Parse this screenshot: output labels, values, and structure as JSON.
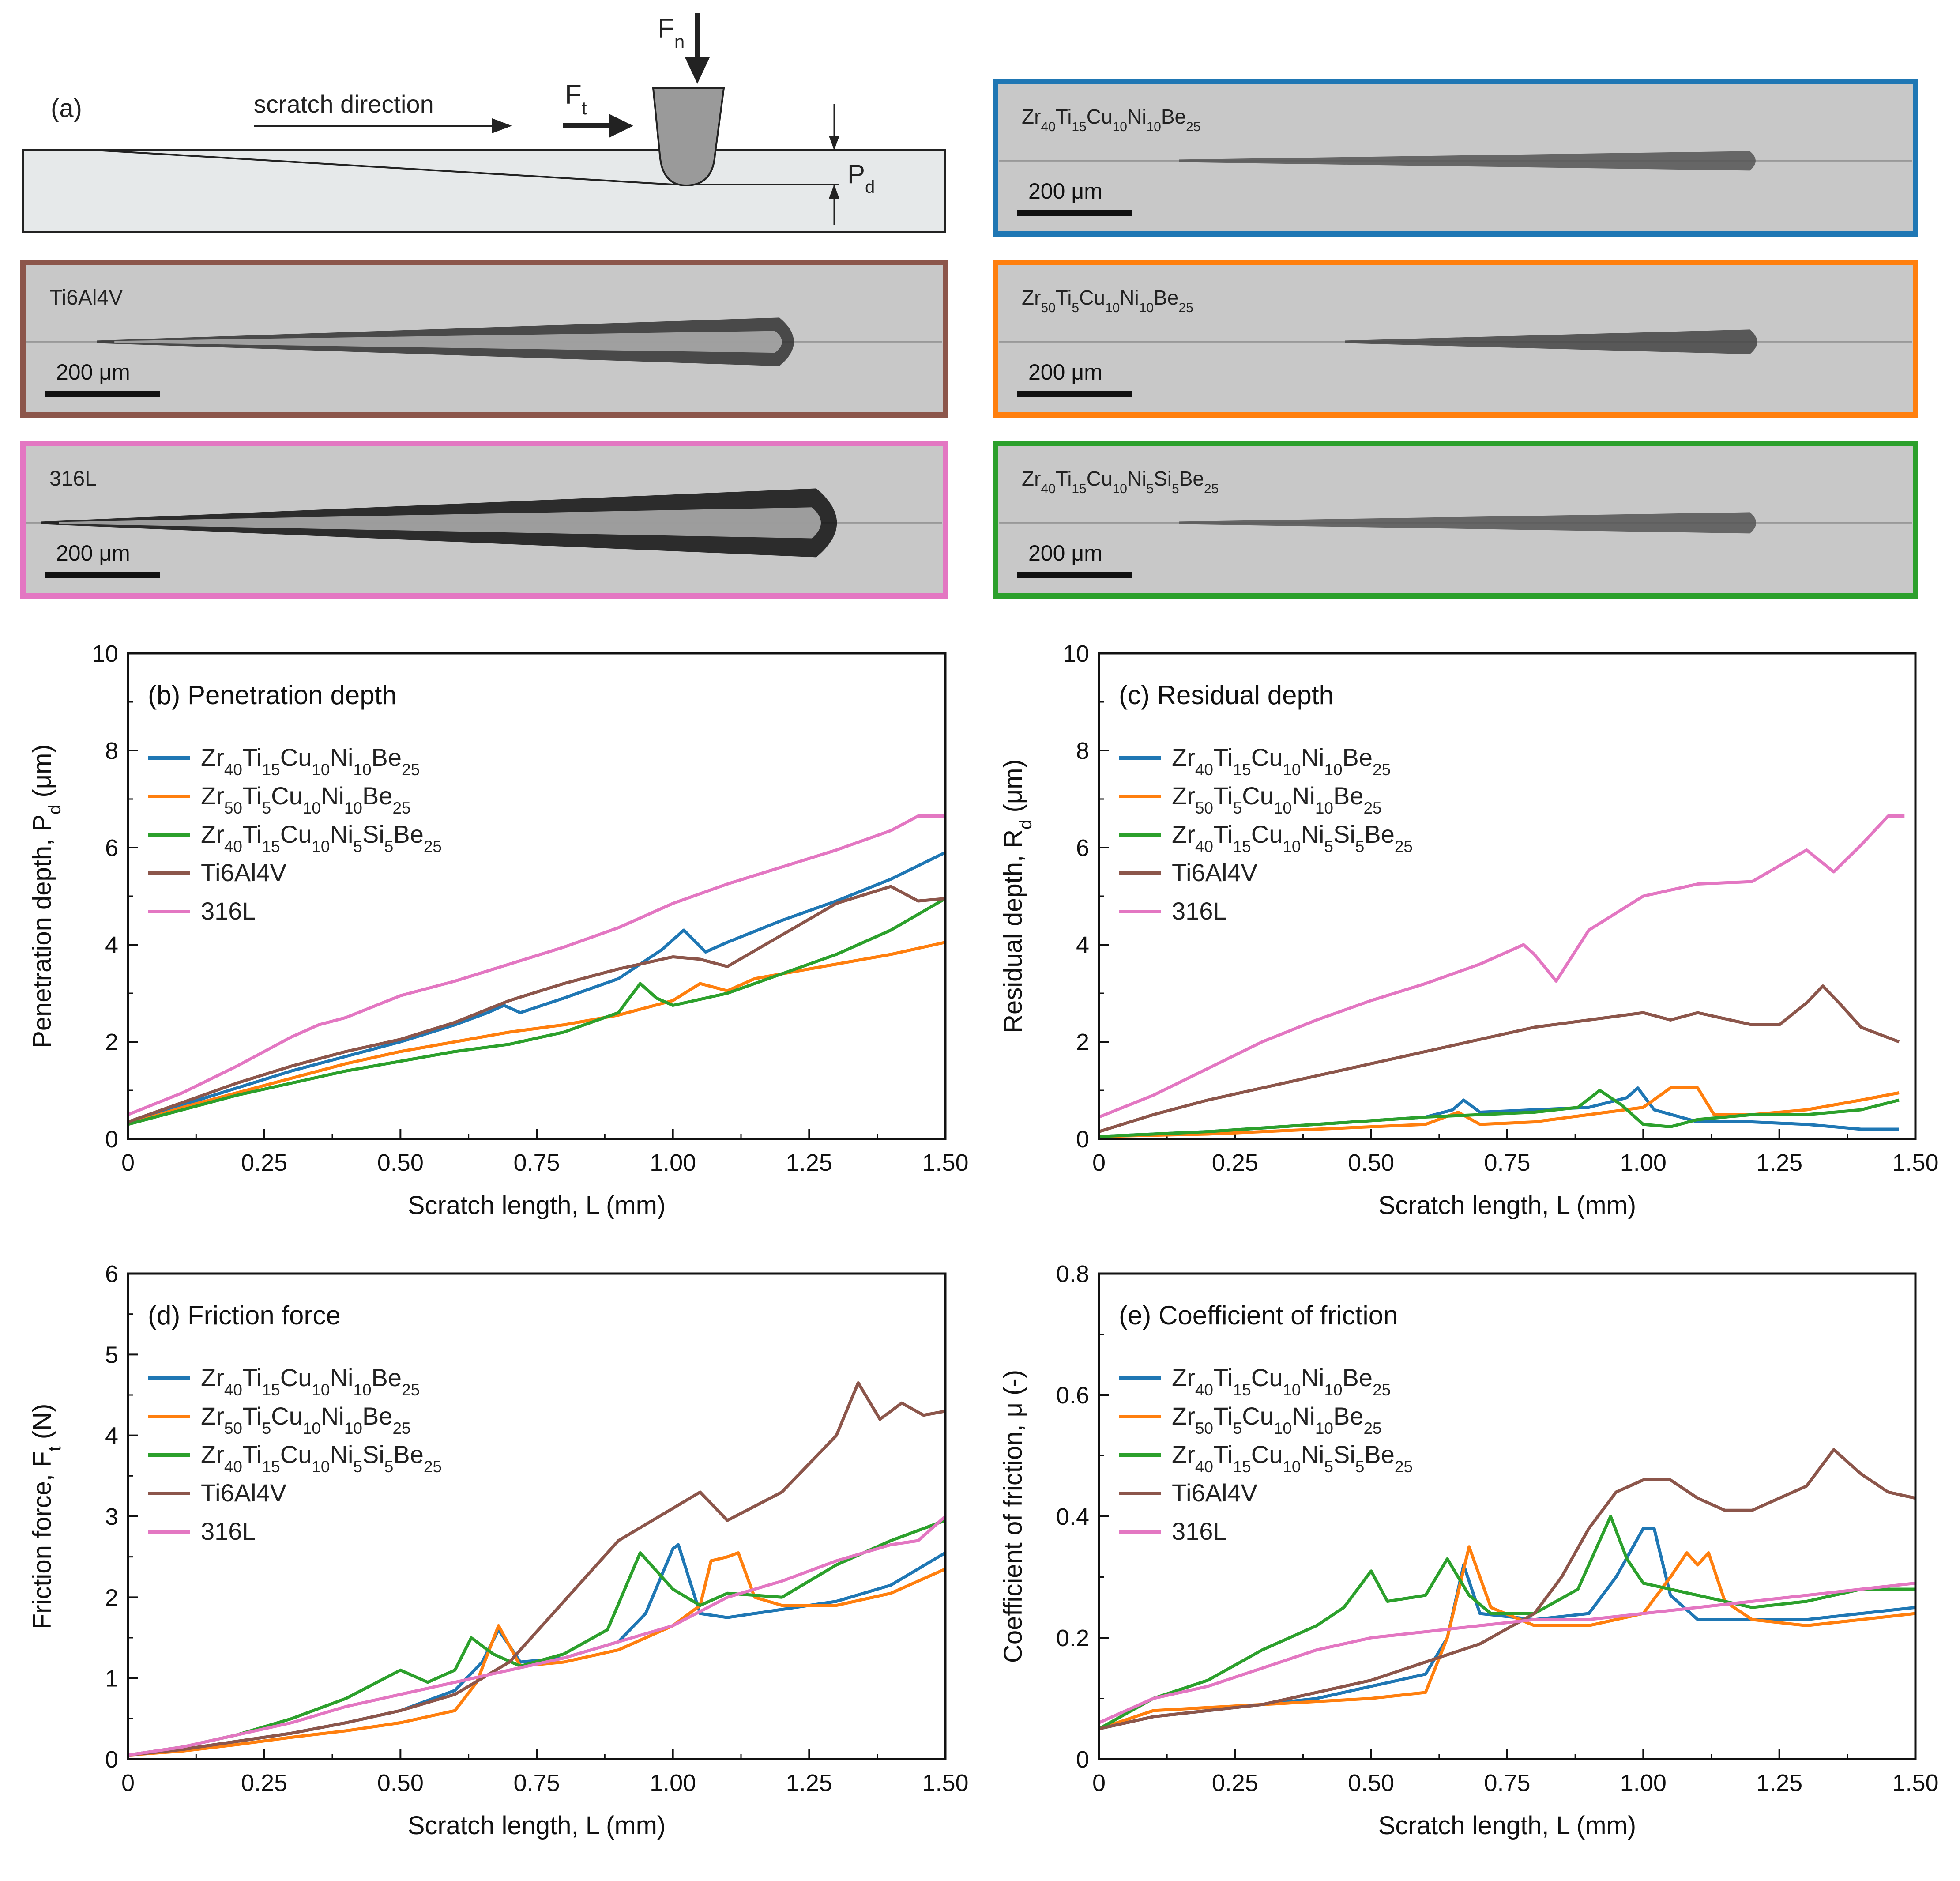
{
  "colors": {
    "alloy1": "#1f77b4",
    "alloy2": "#ff7f0e",
    "alloy3": "#2ca02c",
    "ti6al4v": "#8c564b",
    "ss316l": "#e377c2",
    "image_bg": "#c8c8c8",
    "schematic_bg": "#e6e9ea"
  },
  "schematic": {
    "panel_label": "(a)",
    "direction_label": "scratch direction",
    "fn_label": "F",
    "fn_sub": "n",
    "ft_label": "F",
    "ft_sub": "t",
    "pd_label": "P",
    "pd_sub": "d"
  },
  "micrographs": [
    {
      "id": "alloy1",
      "base": [
        "Zr",
        "40",
        "Ti",
        "15",
        "Cu",
        "10",
        "Ni",
        "10",
        "Be",
        "25"
      ],
      "scale": "200 μm",
      "frame_color": "#1f77b4"
    },
    {
      "id": "ti6al4v",
      "label": "Ti6Al4V",
      "scale": "200 μm",
      "frame_color": "#8c564b"
    },
    {
      "id": "alloy2",
      "base": [
        "Zr",
        "50",
        "Ti",
        "5",
        "Cu",
        "10",
        "Ni",
        "10",
        "Be",
        "25"
      ],
      "scale": "200 μm",
      "frame_color": "#ff7f0e"
    },
    {
      "id": "ss316l",
      "label": "316L",
      "scale": "200 μm",
      "frame_color": "#e377c2"
    },
    {
      "id": "alloy3",
      "base": [
        "Zr",
        "40",
        "Ti",
        "15",
        "Cu",
        "10",
        "Ni",
        "5",
        "Si",
        "5",
        "Be",
        "25"
      ],
      "scale": "200 μm",
      "frame_color": "#2ca02c"
    }
  ],
  "legend": [
    {
      "key": "alloy1",
      "parts": [
        "Zr",
        "40",
        "Ti",
        "15",
        "Cu",
        "10",
        "Ni",
        "10",
        "Be",
        "25"
      ]
    },
    {
      "key": "alloy2",
      "parts": [
        "Zr",
        "50",
        "Ti",
        "5",
        "Cu",
        "10",
        "Ni",
        "10",
        "Be",
        "25"
      ]
    },
    {
      "key": "alloy3",
      "parts": [
        "Zr",
        "40",
        "Ti",
        "15",
        "Cu",
        "10",
        "Ni",
        "5",
        "Si",
        "5",
        "Be",
        "25"
      ]
    },
    {
      "key": "ti6al4v",
      "parts": [
        "Ti6Al4V"
      ]
    },
    {
      "key": "ss316l",
      "parts": [
        "316L"
      ]
    }
  ],
  "chart_data": [
    {
      "type": "line",
      "title": "(b) Penetration depth",
      "xlabel": "Scratch length, L (mm)",
      "ylabel": [
        "Penetration depth, P",
        "d",
        " (μm)"
      ],
      "xlim": [
        0,
        1.5
      ],
      "ylim": [
        0,
        10
      ],
      "xticks": [
        "0",
        "0.25",
        "0.50",
        "0.75",
        "1.00",
        "1.25",
        "1.50"
      ],
      "yticks": [
        "0",
        "2",
        "4",
        "6",
        "8",
        "10"
      ],
      "series": [
        {
          "key": "alloy1",
          "x": [
            0,
            0.1,
            0.2,
            0.3,
            0.4,
            0.5,
            0.6,
            0.66,
            0.69,
            0.72,
            0.8,
            0.9,
            0.98,
            1.02,
            1.06,
            1.1,
            1.2,
            1.3,
            1.4,
            1.5
          ],
          "y": [
            0.35,
            0.7,
            1.05,
            1.4,
            1.7,
            2.0,
            2.35,
            2.6,
            2.75,
            2.6,
            2.9,
            3.3,
            3.9,
            4.3,
            3.85,
            4.05,
            4.5,
            4.9,
            5.35,
            5.9
          ]
        },
        {
          "key": "alloy2",
          "x": [
            0,
            0.1,
            0.2,
            0.3,
            0.4,
            0.5,
            0.6,
            0.7,
            0.8,
            0.9,
            1.0,
            1.05,
            1.1,
            1.15,
            1.2,
            1.3,
            1.4,
            1.5
          ],
          "y": [
            0.3,
            0.65,
            0.95,
            1.25,
            1.55,
            1.8,
            2.0,
            2.2,
            2.35,
            2.55,
            2.85,
            3.2,
            3.05,
            3.3,
            3.4,
            3.6,
            3.8,
            4.05
          ]
        },
        {
          "key": "alloy3",
          "x": [
            0,
            0.1,
            0.2,
            0.3,
            0.4,
            0.5,
            0.6,
            0.7,
            0.8,
            0.9,
            0.94,
            0.97,
            1.0,
            1.1,
            1.2,
            1.3,
            1.4,
            1.5
          ],
          "y": [
            0.3,
            0.6,
            0.9,
            1.15,
            1.4,
            1.6,
            1.8,
            1.95,
            2.2,
            2.6,
            3.2,
            2.9,
            2.75,
            3.0,
            3.4,
            3.8,
            4.3,
            4.95
          ]
        },
        {
          "key": "ti6al4v",
          "x": [
            0,
            0.1,
            0.2,
            0.3,
            0.4,
            0.5,
            0.6,
            0.7,
            0.8,
            0.9,
            1.0,
            1.05,
            1.1,
            1.2,
            1.3,
            1.4,
            1.45,
            1.5
          ],
          "y": [
            0.35,
            0.75,
            1.15,
            1.5,
            1.8,
            2.05,
            2.4,
            2.85,
            3.2,
            3.5,
            3.75,
            3.7,
            3.55,
            4.2,
            4.85,
            5.2,
            4.9,
            4.95
          ]
        },
        {
          "key": "ss316l",
          "x": [
            0,
            0.1,
            0.2,
            0.3,
            0.35,
            0.4,
            0.5,
            0.6,
            0.7,
            0.8,
            0.9,
            1.0,
            1.1,
            1.2,
            1.3,
            1.4,
            1.45,
            1.5
          ],
          "y": [
            0.5,
            0.95,
            1.5,
            2.1,
            2.35,
            2.5,
            2.95,
            3.25,
            3.6,
            3.95,
            4.35,
            4.85,
            5.25,
            5.6,
            5.95,
            6.35,
            6.65,
            6.65
          ]
        }
      ]
    },
    {
      "type": "line",
      "title": "(c) Residual depth",
      "xlabel": "Scratch length, L (mm)",
      "ylabel": [
        "Residual depth, R",
        "d",
        " (μm)"
      ],
      "xlim": [
        0,
        1.5
      ],
      "ylim": [
        0,
        10
      ],
      "xticks": [
        "0",
        "0.25",
        "0.50",
        "0.75",
        "1.00",
        "1.25",
        "1.50"
      ],
      "yticks": [
        "0",
        "2",
        "4",
        "6",
        "8",
        "10"
      ],
      "series": [
        {
          "key": "alloy1",
          "x": [
            0,
            0.2,
            0.4,
            0.6,
            0.65,
            0.67,
            0.7,
            0.8,
            0.9,
            0.97,
            0.99,
            1.02,
            1.1,
            1.2,
            1.3,
            1.4,
            1.47
          ],
          "y": [
            0.05,
            0.15,
            0.3,
            0.45,
            0.6,
            0.8,
            0.55,
            0.6,
            0.65,
            0.85,
            1.05,
            0.6,
            0.35,
            0.35,
            0.3,
            0.2,
            0.2
          ]
        },
        {
          "key": "alloy2",
          "x": [
            0,
            0.2,
            0.4,
            0.6,
            0.66,
            0.7,
            0.8,
            0.9,
            1.0,
            1.05,
            1.1,
            1.13,
            1.2,
            1.3,
            1.4,
            1.47
          ],
          "y": [
            0.05,
            0.1,
            0.2,
            0.3,
            0.55,
            0.3,
            0.35,
            0.5,
            0.65,
            1.05,
            1.05,
            0.5,
            0.5,
            0.6,
            0.8,
            0.95
          ]
        },
        {
          "key": "alloy3",
          "x": [
            0,
            0.2,
            0.4,
            0.6,
            0.7,
            0.8,
            0.88,
            0.92,
            0.96,
            1.0,
            1.05,
            1.1,
            1.2,
            1.3,
            1.4,
            1.47
          ],
          "y": [
            0.05,
            0.15,
            0.3,
            0.45,
            0.5,
            0.55,
            0.65,
            1.0,
            0.7,
            0.3,
            0.25,
            0.4,
            0.5,
            0.5,
            0.6,
            0.8
          ]
        },
        {
          "key": "ti6al4v",
          "x": [
            0,
            0.1,
            0.2,
            0.3,
            0.4,
            0.5,
            0.6,
            0.7,
            0.8,
            0.9,
            1.0,
            1.05,
            1.1,
            1.2,
            1.25,
            1.3,
            1.33,
            1.36,
            1.4,
            1.47
          ],
          "y": [
            0.15,
            0.5,
            0.8,
            1.05,
            1.3,
            1.55,
            1.8,
            2.05,
            2.3,
            2.45,
            2.6,
            2.45,
            2.6,
            2.35,
            2.35,
            2.8,
            3.15,
            2.8,
            2.3,
            2.0
          ]
        },
        {
          "key": "ss316l",
          "x": [
            0,
            0.1,
            0.2,
            0.3,
            0.4,
            0.5,
            0.6,
            0.7,
            0.78,
            0.8,
            0.84,
            0.9,
            1.0,
            1.1,
            1.2,
            1.3,
            1.35,
            1.4,
            1.45,
            1.48
          ],
          "y": [
            0.45,
            0.9,
            1.45,
            2.0,
            2.45,
            2.85,
            3.2,
            3.6,
            4.0,
            3.8,
            3.25,
            4.3,
            5.0,
            5.25,
            5.3,
            5.95,
            5.5,
            6.05,
            6.65,
            6.65
          ]
        }
      ]
    },
    {
      "type": "line",
      "title": "(d) Friction force",
      "xlabel": "Scratch length, L (mm)",
      "ylabel": [
        "Friction force, F",
        "t",
        " (N)"
      ],
      "xlim": [
        0,
        1.5
      ],
      "ylim": [
        0,
        6
      ],
      "xticks": [
        "0",
        "0.25",
        "0.50",
        "0.75",
        "1.00",
        "1.25",
        "1.50"
      ],
      "yticks": [
        "0",
        "1",
        "2",
        "3",
        "4",
        "5",
        "6"
      ],
      "series": [
        {
          "key": "alloy1",
          "x": [
            0,
            0.1,
            0.2,
            0.3,
            0.4,
            0.5,
            0.6,
            0.65,
            0.68,
            0.72,
            0.8,
            0.9,
            0.95,
            1.0,
            1.01,
            1.05,
            1.1,
            1.2,
            1.3,
            1.4,
            1.5
          ],
          "y": [
            0.05,
            0.12,
            0.22,
            0.32,
            0.45,
            0.6,
            0.85,
            1.2,
            1.6,
            1.2,
            1.25,
            1.45,
            1.8,
            2.6,
            2.65,
            1.8,
            1.75,
            1.85,
            1.95,
            2.15,
            2.55
          ]
        },
        {
          "key": "alloy2",
          "x": [
            0,
            0.1,
            0.2,
            0.3,
            0.4,
            0.5,
            0.6,
            0.64,
            0.68,
            0.72,
            0.8,
            0.9,
            1.0,
            1.05,
            1.07,
            1.1,
            1.12,
            1.15,
            1.2,
            1.3,
            1.4,
            1.5
          ],
          "y": [
            0.05,
            0.1,
            0.18,
            0.27,
            0.35,
            0.45,
            0.6,
            0.95,
            1.65,
            1.15,
            1.2,
            1.35,
            1.65,
            1.9,
            2.45,
            2.5,
            2.55,
            2.0,
            1.9,
            1.9,
            2.05,
            2.35
          ]
        },
        {
          "key": "alloy3",
          "x": [
            0,
            0.1,
            0.2,
            0.3,
            0.4,
            0.5,
            0.55,
            0.6,
            0.63,
            0.67,
            0.72,
            0.8,
            0.88,
            0.94,
            1.0,
            1.05,
            1.1,
            1.2,
            1.3,
            1.4,
            1.5
          ],
          "y": [
            0.05,
            0.15,
            0.3,
            0.5,
            0.75,
            1.1,
            0.95,
            1.1,
            1.5,
            1.3,
            1.15,
            1.3,
            1.6,
            2.55,
            2.1,
            1.9,
            2.05,
            2.0,
            2.4,
            2.7,
            2.95
          ]
        },
        {
          "key": "ti6al4v",
          "x": [
            0,
            0.1,
            0.2,
            0.3,
            0.4,
            0.5,
            0.6,
            0.7,
            0.8,
            0.9,
            1.0,
            1.05,
            1.1,
            1.2,
            1.3,
            1.34,
            1.38,
            1.42,
            1.46,
            1.5
          ],
          "y": [
            0.05,
            0.12,
            0.22,
            0.32,
            0.45,
            0.6,
            0.8,
            1.2,
            1.95,
            2.7,
            3.1,
            3.3,
            2.95,
            3.3,
            4.0,
            4.65,
            4.2,
            4.4,
            4.25,
            4.3
          ]
        },
        {
          "key": "ss316l",
          "x": [
            0,
            0.1,
            0.2,
            0.3,
            0.4,
            0.5,
            0.6,
            0.7,
            0.8,
            0.9,
            1.0,
            1.1,
            1.2,
            1.3,
            1.4,
            1.45,
            1.5
          ],
          "y": [
            0.05,
            0.15,
            0.3,
            0.45,
            0.65,
            0.8,
            0.95,
            1.1,
            1.25,
            1.45,
            1.65,
            2.0,
            2.2,
            2.45,
            2.65,
            2.7,
            3.0
          ]
        }
      ]
    },
    {
      "type": "line",
      "title": "(e) Coefficient of friction",
      "xlabel": "Scratch length, L (mm)",
      "ylabel": [
        "Coefficient of friction, μ (-)"
      ],
      "xlim": [
        0,
        1.5
      ],
      "ylim": [
        0,
        0.8
      ],
      "xticks": [
        "0",
        "0.25",
        "0.50",
        "0.75",
        "1.00",
        "1.25",
        "1.50"
      ],
      "yticks": [
        "0",
        "0.2",
        "0.4",
        "0.6",
        "0.8"
      ],
      "series": [
        {
          "key": "alloy1",
          "x": [
            0,
            0.1,
            0.2,
            0.3,
            0.4,
            0.5,
            0.6,
            0.64,
            0.67,
            0.7,
            0.8,
            0.9,
            0.95,
            1.0,
            1.02,
            1.05,
            1.1,
            1.2,
            1.3,
            1.4,
            1.5
          ],
          "y": [
            0.05,
            0.07,
            0.08,
            0.09,
            0.1,
            0.12,
            0.14,
            0.2,
            0.32,
            0.24,
            0.23,
            0.24,
            0.3,
            0.38,
            0.38,
            0.27,
            0.23,
            0.23,
            0.23,
            0.24,
            0.25
          ]
        },
        {
          "key": "alloy2",
          "x": [
            0,
            0.1,
            0.2,
            0.3,
            0.4,
            0.5,
            0.6,
            0.64,
            0.68,
            0.72,
            0.8,
            0.9,
            1.0,
            1.05,
            1.08,
            1.1,
            1.12,
            1.15,
            1.2,
            1.3,
            1.4,
            1.5
          ],
          "y": [
            0.05,
            0.08,
            0.085,
            0.09,
            0.095,
            0.1,
            0.11,
            0.2,
            0.35,
            0.25,
            0.22,
            0.22,
            0.24,
            0.3,
            0.34,
            0.32,
            0.34,
            0.26,
            0.23,
            0.22,
            0.23,
            0.24
          ]
        },
        {
          "key": "alloy3",
          "x": [
            0,
            0.1,
            0.2,
            0.3,
            0.4,
            0.45,
            0.5,
            0.53,
            0.6,
            0.64,
            0.68,
            0.72,
            0.8,
            0.88,
            0.94,
            0.97,
            1.0,
            1.1,
            1.2,
            1.3,
            1.4,
            1.5
          ],
          "y": [
            0.05,
            0.1,
            0.13,
            0.18,
            0.22,
            0.25,
            0.31,
            0.26,
            0.27,
            0.33,
            0.27,
            0.24,
            0.24,
            0.28,
            0.4,
            0.33,
            0.29,
            0.27,
            0.25,
            0.26,
            0.28,
            0.28
          ]
        },
        {
          "key": "ti6al4v",
          "x": [
            0,
            0.1,
            0.2,
            0.3,
            0.4,
            0.5,
            0.6,
            0.7,
            0.8,
            0.85,
            0.9,
            0.95,
            1.0,
            1.05,
            1.1,
            1.15,
            1.2,
            1.3,
            1.35,
            1.4,
            1.45,
            1.5
          ],
          "y": [
            0.05,
            0.07,
            0.08,
            0.09,
            0.11,
            0.13,
            0.16,
            0.19,
            0.24,
            0.3,
            0.38,
            0.44,
            0.46,
            0.46,
            0.43,
            0.41,
            0.41,
            0.45,
            0.51,
            0.47,
            0.44,
            0.43
          ]
        },
        {
          "key": "ss316l",
          "x": [
            0,
            0.1,
            0.2,
            0.3,
            0.4,
            0.5,
            0.6,
            0.7,
            0.8,
            0.9,
            1.0,
            1.1,
            1.2,
            1.3,
            1.4,
            1.5
          ],
          "y": [
            0.06,
            0.1,
            0.12,
            0.15,
            0.18,
            0.2,
            0.21,
            0.22,
            0.23,
            0.23,
            0.24,
            0.25,
            0.26,
            0.27,
            0.28,
            0.29
          ]
        }
      ]
    }
  ]
}
